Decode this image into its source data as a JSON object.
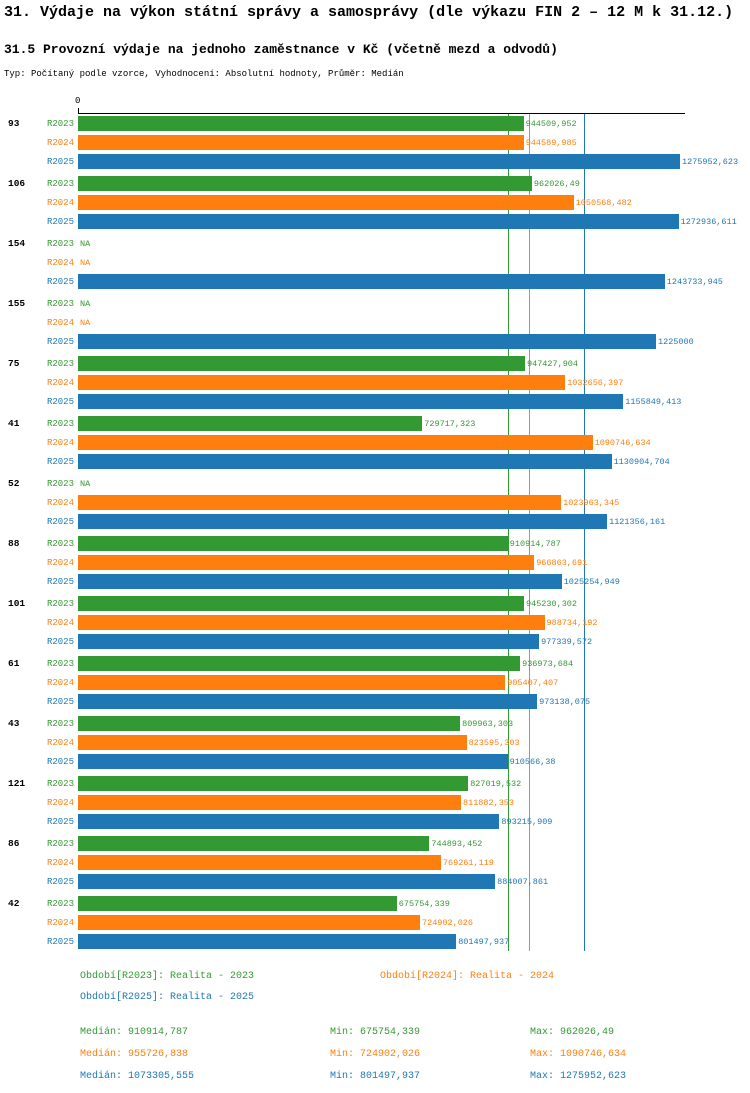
{
  "header": {
    "title": "31. Výdaje na výkon státní správy a samosprávy (dle výkazu FIN 2 – 12 M k 31.12.)",
    "subtitle": "31.5 Provozní výdaje na jednoho zaměstnance v Kč (včetně mezd a odvodů)",
    "meta": "Typ: Počítaný podle vzorce, Vyhodnocení: Absolutní hodnoty, Průměr: Medián"
  },
  "chart_data": {
    "type": "bar",
    "orientation": "horizontal",
    "value_unit": "Kč",
    "na_label": "NA",
    "axis": {
      "zero_label": "0",
      "min": 0,
      "max": 1275952.623
    },
    "series": [
      {
        "name": "R2023",
        "color": "#339933",
        "median": 910914.787
      },
      {
        "name": "R2024",
        "color": "#ff7f0e",
        "median": 955726.838
      },
      {
        "name": "R2025",
        "color": "#1f77b4",
        "median": 1073305.555
      }
    ],
    "groups": [
      {
        "id": "93",
        "values": [
          "944509,952",
          "944589,985",
          "1275952,623"
        ]
      },
      {
        "id": "106",
        "values": [
          "962026,49",
          "1050568,482",
          "1272936,611"
        ]
      },
      {
        "id": "154",
        "values": [
          "NA",
          "NA",
          "1243733,945"
        ]
      },
      {
        "id": "155",
        "values": [
          "NA",
          "NA",
          "1225000"
        ]
      },
      {
        "id": "75",
        "values": [
          "947427,904",
          "1032656,397",
          "1155849,413"
        ]
      },
      {
        "id": "41",
        "values": [
          "729717,323",
          "1090746,634",
          "1130904,704"
        ]
      },
      {
        "id": "52",
        "values": [
          "NA",
          "1023963,345",
          "1121356,161"
        ]
      },
      {
        "id": "88",
        "values": [
          "910914,787",
          "966863,691",
          "1025254,949"
        ]
      },
      {
        "id": "101",
        "values": [
          "945230,302",
          "988734,192",
          "977339,572"
        ]
      },
      {
        "id": "61",
        "values": [
          "936973,684",
          "905407,407",
          "973138,075"
        ]
      },
      {
        "id": "43",
        "values": [
          "809963,303",
          "823595,303",
          "910566,38"
        ]
      },
      {
        "id": "121",
        "values": [
          "827019,532",
          "811882,353",
          "893215,909"
        ]
      },
      {
        "id": "86",
        "values": [
          "744893,452",
          "769261,119",
          "884007,861"
        ]
      },
      {
        "id": "42",
        "values": [
          "675754,339",
          "724902,026",
          "801497,937"
        ]
      }
    ]
  },
  "legend": {
    "items": [
      {
        "label": "Období[R2023]: Realita - 2023",
        "color": "#339933"
      },
      {
        "label": "Období[R2024]: Realita - 2024",
        "color": "#ff7f0e"
      },
      {
        "label": "Období[R2025]: Realita - 2025",
        "color": "#1f77b4"
      }
    ]
  },
  "stats": {
    "rows": [
      {
        "median": "Medián: 910914,787",
        "min": "Min: 675754,339",
        "max": "Max: 962026,49",
        "color": "#339933"
      },
      {
        "median": "Medián: 955726,838",
        "min": "Min: 724902,026",
        "max": "Max: 1090746,634",
        "color": "#ff7f0e"
      },
      {
        "median": "Medián: 1073305,555",
        "min": "Min: 801497,937",
        "max": "Max: 1275952,623",
        "color": "#1f77b4"
      }
    ]
  }
}
